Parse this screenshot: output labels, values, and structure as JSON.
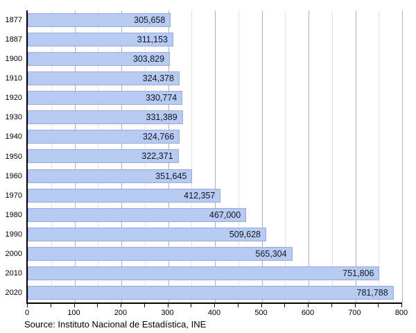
{
  "chart_data": {
    "type": "bar",
    "orientation": "horizontal",
    "categories": [
      "1877",
      "1887",
      "1900",
      "1910",
      "1920",
      "1930",
      "1940",
      "1950",
      "1960",
      "1970",
      "1980",
      "1990",
      "2000",
      "2010",
      "2020"
    ],
    "values": [
      305658,
      311153,
      303829,
      324378,
      330774,
      331389,
      324766,
      322371,
      351645,
      412357,
      467000,
      509628,
      565304,
      751806,
      781788
    ],
    "value_labels": [
      "305,658",
      "311,153",
      "303,829",
      "324,378",
      "330,774",
      "331,389",
      "324,766",
      "322,371",
      "351,645",
      "412,357",
      "467,000",
      "509,628",
      "565,304",
      "751,806",
      "781,788"
    ],
    "xlim": [
      0,
      800000
    ],
    "x_tick_values": [
      0,
      100,
      200,
      300,
      400,
      500,
      600,
      700,
      800
    ],
    "x_tick_labels": [
      "0",
      "100",
      "200",
      "300",
      "400",
      "500",
      "600",
      "700",
      "800"
    ],
    "x_minor_step": 50,
    "grid": true,
    "legend_position": "none",
    "title": "",
    "xlabel": "",
    "ylabel": ""
  },
  "source": {
    "note": "Source: Instituto Nacional de Estadística, INE"
  },
  "colors": {
    "bar_fill": "#b7cbf2",
    "bar_border": "#98abdd",
    "grid_minor": "#e3e3e3",
    "grid_major": "#b0b0b0",
    "axis": "#000000",
    "value_text": "#15151f",
    "background": "#ffffff"
  }
}
